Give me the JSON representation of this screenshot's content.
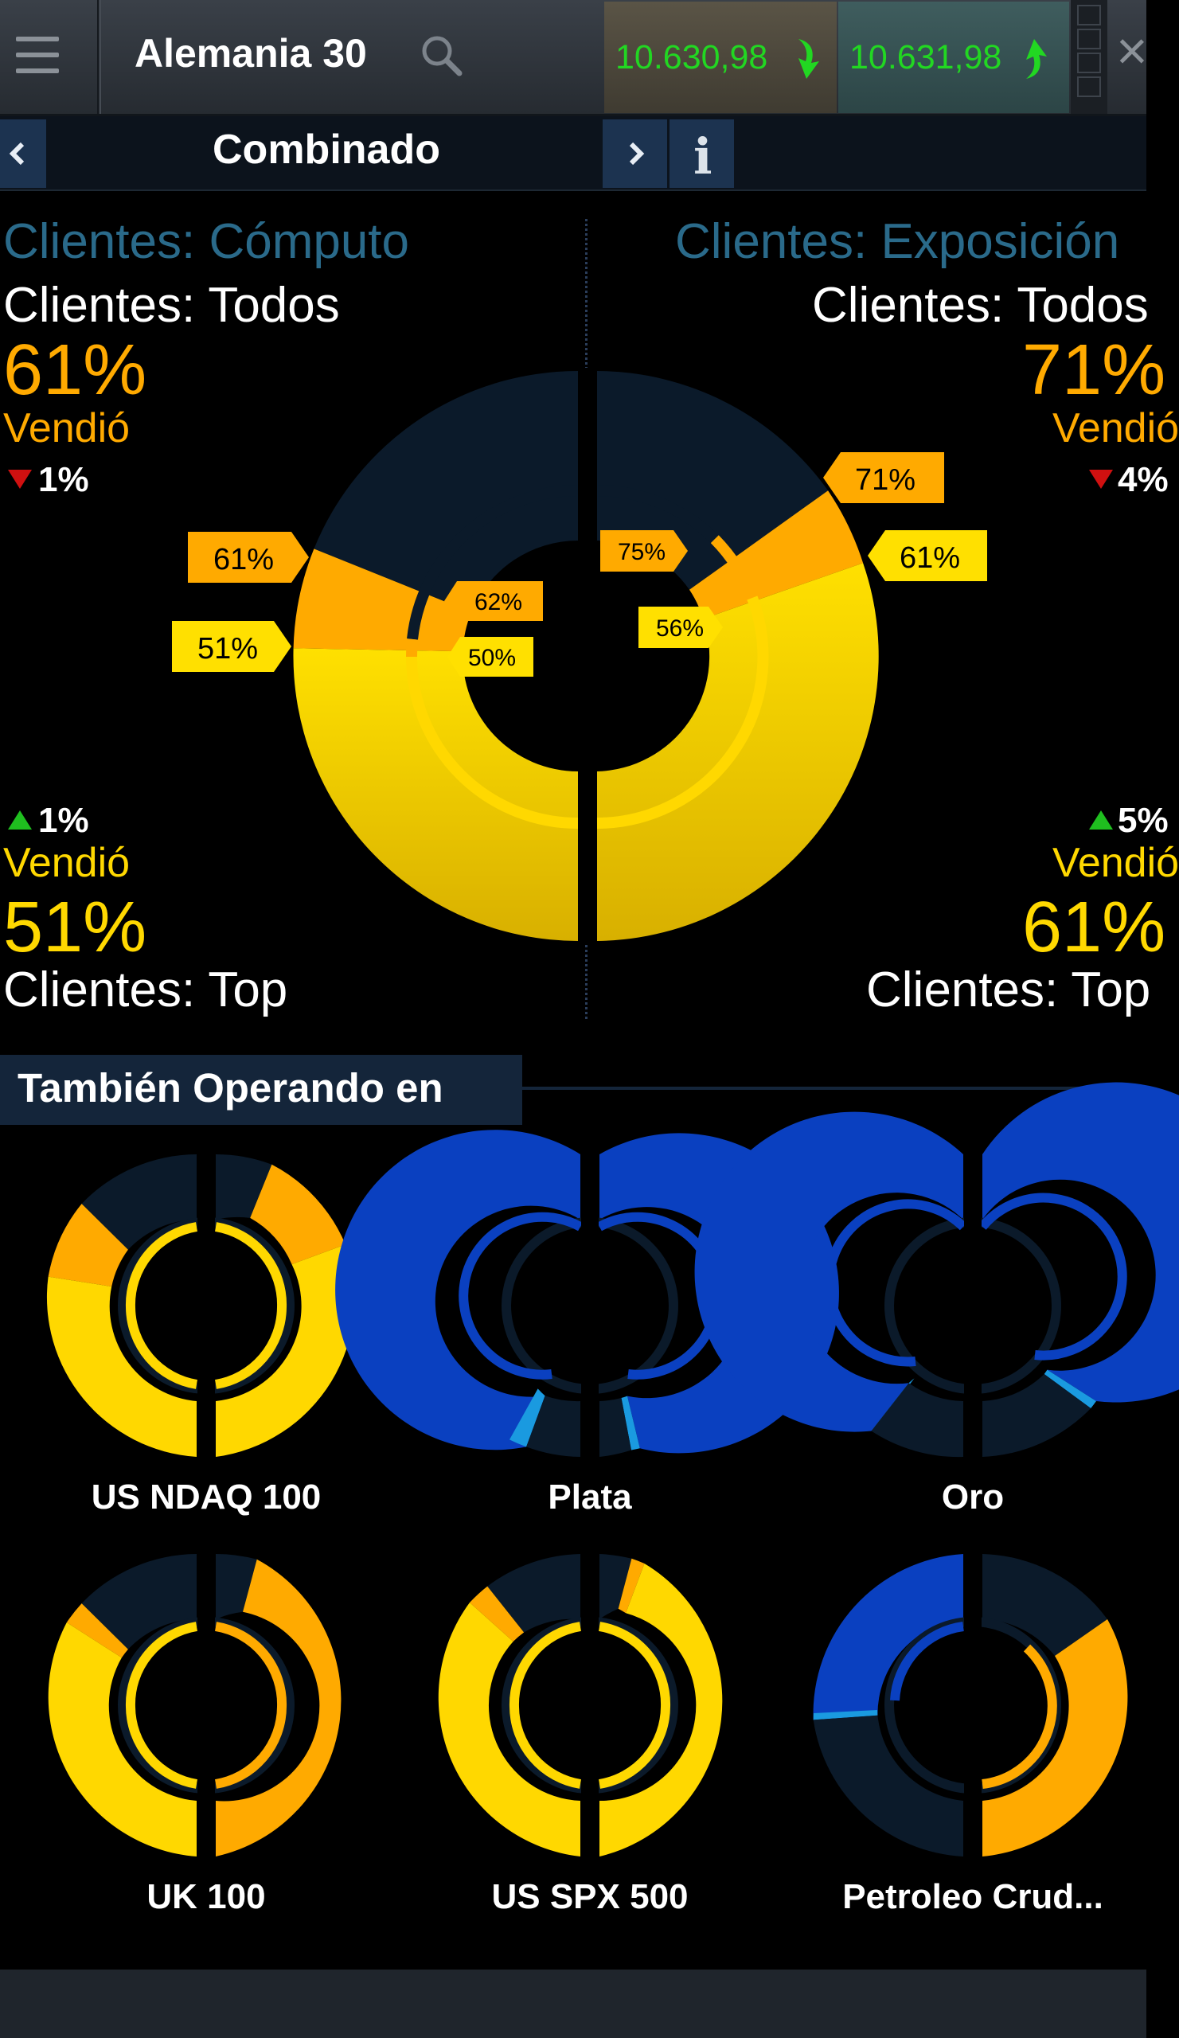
{
  "header": {
    "instrument": "Alemania 30",
    "sell_price": "10.630,98",
    "buy_price": "10.631,98",
    "icons": [
      "menu-icon",
      "search-icon",
      "arrow-down-icon",
      "arrow-up-icon",
      "grip-icon",
      "close-icon"
    ]
  },
  "subheader": {
    "mode": "Combinado",
    "prev_icon": "chevron-left-icon",
    "next_icon": "chevron-right-icon",
    "info_icon": "info-icon"
  },
  "left_panel": {
    "title": "Clientes: Cómputo",
    "all_label": "Clientes: Todos",
    "all_pct": "61%",
    "all_action": "Vendió",
    "all_change": "1%",
    "top_change": "1%",
    "top_action": "Vendió",
    "top_pct": "51%",
    "top_label": "Clientes: Top",
    "tags": {
      "outer_all": "61%",
      "outer_top": "51%",
      "inner_all": "62%",
      "inner_top": "50%"
    }
  },
  "right_panel": {
    "title": "Clientes: Exposición",
    "all_label": "Clientes: Todos",
    "all_pct": "71%",
    "all_action": "Vendió",
    "all_change": "4%",
    "top_change": "5%",
    "top_action": "Vendió",
    "top_pct": "61%",
    "top_label": "Clientes: Top",
    "tags": {
      "outer_all": "71%",
      "outer_top": "61%",
      "inner_all": "75%",
      "inner_top": "56%"
    }
  },
  "section": {
    "title": "También Operando en"
  },
  "markets": [
    {
      "name": "US NDAQ 100"
    },
    {
      "name": "Plata"
    },
    {
      "name": "Oro"
    },
    {
      "name": "UK 100"
    },
    {
      "name": "US SPX 500"
    },
    {
      "name": "Petroleo Crud..."
    }
  ],
  "colors": {
    "sell_yellow": "#ffd800",
    "sell_orange": "#ffaa00",
    "buy_blue": "#0a40c0",
    "buy_light_blue": "#1a9ae0",
    "ring_bg": "#0b1a2a",
    "title_blue": "#2a6a8a",
    "price_green": "#22d722",
    "up_green": "#1fbf1f",
    "down_red": "#d01010"
  }
}
